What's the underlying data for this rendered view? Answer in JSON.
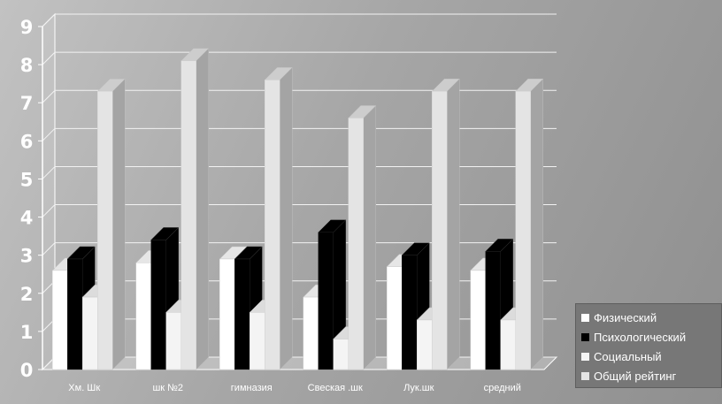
{
  "chart_data": {
    "type": "bar",
    "style": "3d-clustered-column",
    "categories": [
      "Хм. Шк",
      "шк №2",
      "гимназия",
      "Свеская .шк",
      "Лук.шк",
      "средний"
    ],
    "series": [
      {
        "name": "Физический",
        "color": "#ffffff",
        "values": [
          2.6,
          2.8,
          2.9,
          1.9,
          2.7,
          2.6
        ]
      },
      {
        "name": "Психологический",
        "color": "#000000",
        "values": [
          2.9,
          3.4,
          2.9,
          3.6,
          3.0,
          3.1
        ]
      },
      {
        "name": "Социальный",
        "color": "#f4f4f4",
        "values": [
          1.9,
          1.5,
          1.5,
          0.8,
          1.3,
          1.3
        ]
      },
      {
        "name": "Общий рейтинг",
        "color": "#e4e4e4",
        "values": [
          7.3,
          8.1,
          7.6,
          6.6,
          7.3,
          7.3
        ]
      }
    ],
    "yticks": [
      "0",
      "1",
      "2",
      "3",
      "4",
      "5",
      "6",
      "7",
      "8",
      "9"
    ],
    "ylim": [
      0,
      9
    ],
    "grid": true,
    "legend": "bottom-right"
  }
}
